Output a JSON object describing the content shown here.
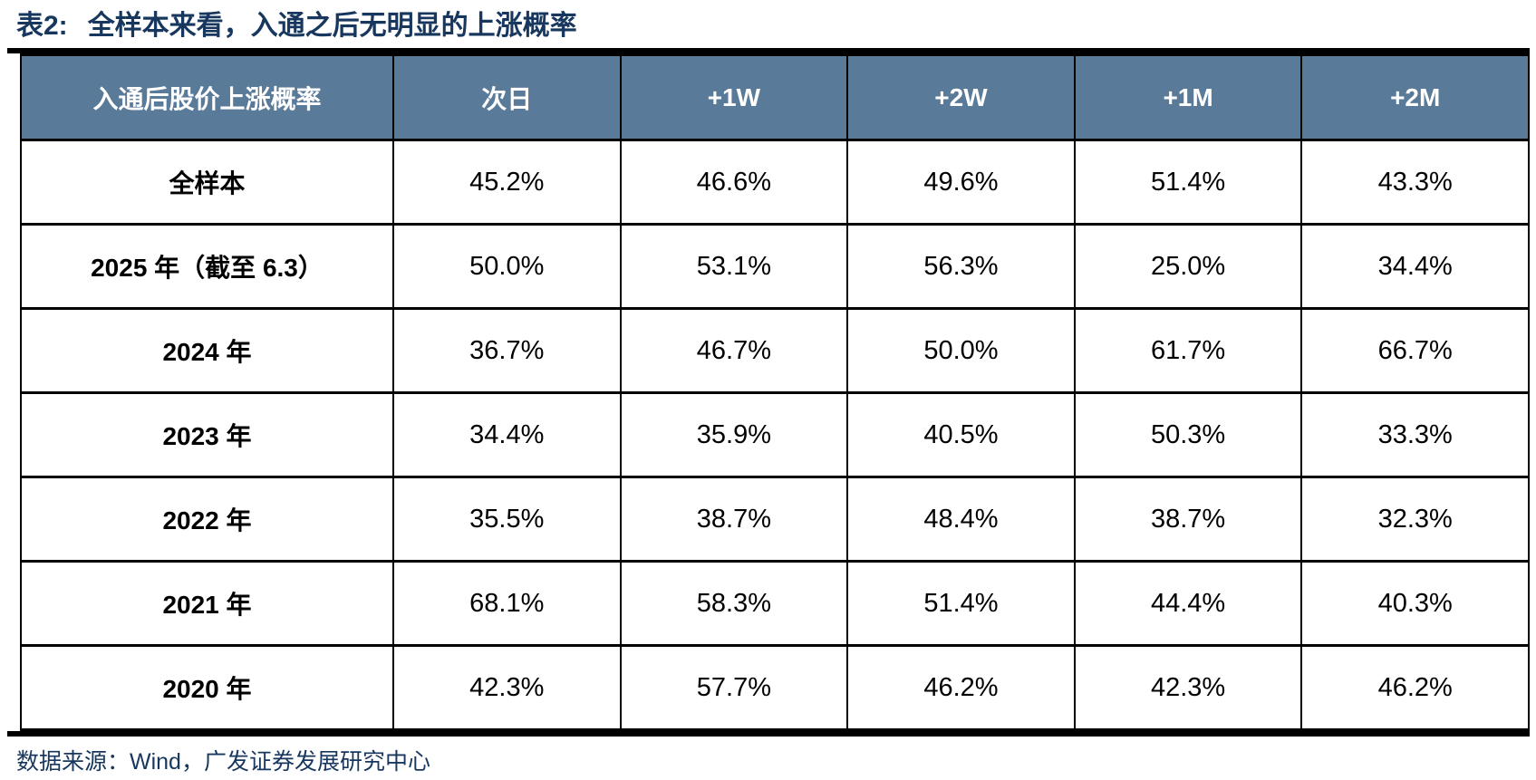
{
  "title": {
    "prefix": "表2:",
    "text": "全样本来看，入通之后无明显的上涨概率"
  },
  "table": {
    "columns": [
      "入通后股价上涨概率",
      "次日",
      "+1W",
      "+2W",
      "+1M",
      "+2M"
    ],
    "rows": [
      {
        "label": "全样本",
        "values": [
          "45.2%",
          "46.6%",
          "49.6%",
          "51.4%",
          "43.3%"
        ]
      },
      {
        "label": "2025 年（截至 6.3）",
        "values": [
          "50.0%",
          "53.1%",
          "56.3%",
          "25.0%",
          "34.4%"
        ]
      },
      {
        "label": "2024 年",
        "values": [
          "36.7%",
          "46.7%",
          "50.0%",
          "61.7%",
          "66.7%"
        ]
      },
      {
        "label": "2023 年",
        "values": [
          "34.4%",
          "35.9%",
          "40.5%",
          "50.3%",
          "33.3%"
        ]
      },
      {
        "label": "2022 年",
        "values": [
          "35.5%",
          "38.7%",
          "48.4%",
          "38.7%",
          "32.3%"
        ]
      },
      {
        "label": "2021 年",
        "values": [
          "68.1%",
          "58.3%",
          "51.4%",
          "44.4%",
          "40.3%"
        ]
      },
      {
        "label": "2020 年",
        "values": [
          "42.3%",
          "57.7%",
          "46.2%",
          "42.3%",
          "46.2%"
        ]
      }
    ]
  },
  "source": "数据来源：Wind，广发证券发展研究中心",
  "colors": {
    "header_bg": "#5a7a99",
    "navy_text": "#17375e",
    "border": "#000000"
  }
}
